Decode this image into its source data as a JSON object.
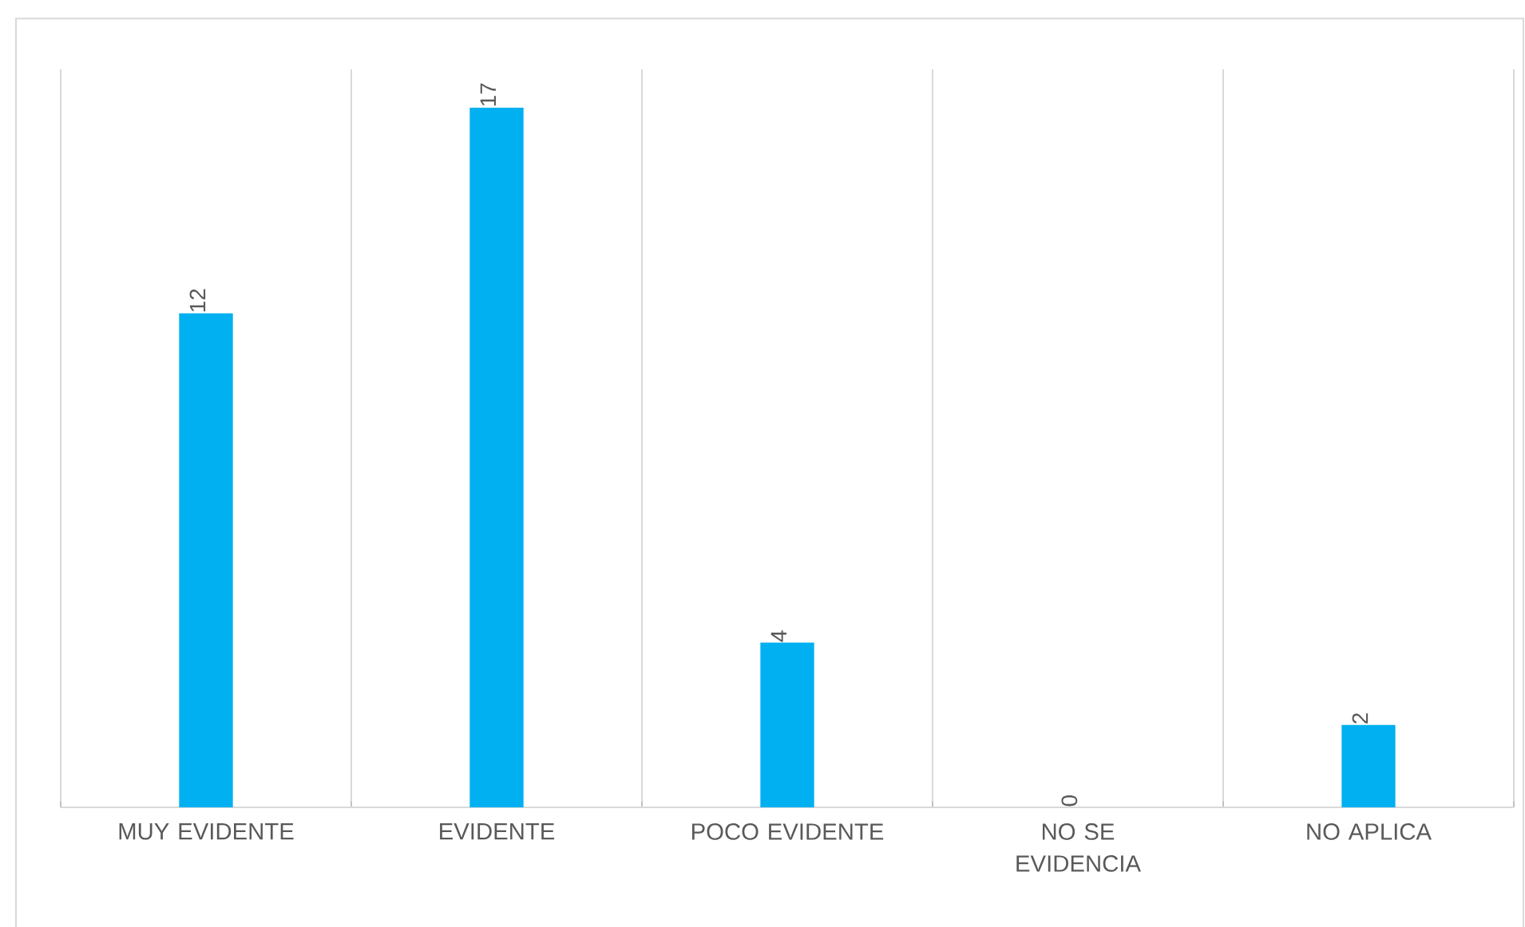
{
  "chart_data": {
    "type": "bar",
    "categories": [
      "MUY EVIDENTE",
      "EVIDENTE",
      "POCO EVIDENTE",
      "NO SE EVIDENCIA",
      "NO APLICA"
    ],
    "values": [
      12,
      17,
      4,
      0,
      2
    ],
    "color": "#00b0f0",
    "data_labels": true,
    "grid": "x"
  }
}
